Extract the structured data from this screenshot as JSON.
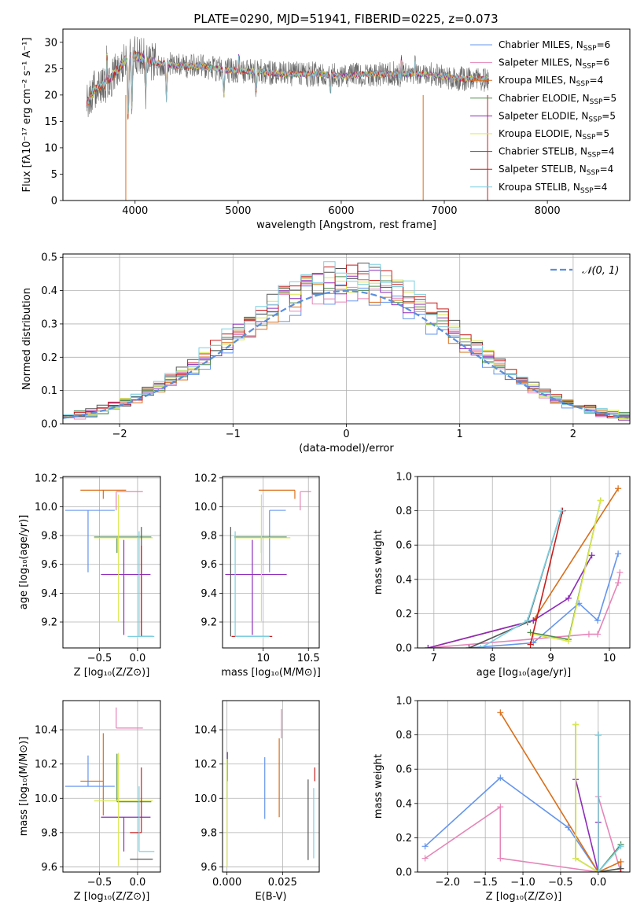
{
  "suptitle": "PLATE=0290, MJD=51941, FIBERID=0225, z=0.073",
  "colors": {
    "models": [
      "#6495ED",
      "#E585B8",
      "#D96F1A",
      "#4F8B4F",
      "#8E2BBA",
      "#D9E84A",
      "#555555",
      "#C81E1E",
      "#7CCFE0"
    ],
    "normal": "#5B8FDB"
  },
  "chart_data": [
    {
      "id": "spectrum",
      "type": "line",
      "xlabel": "wavelength [Angstrom, rest frame]",
      "ylabel": "Flux [fλ10⁻¹⁷ erg cm⁻² s⁻¹ A⁻¹]",
      "xlim": [
        3300,
        8800
      ],
      "ylim": [
        0,
        32.5
      ],
      "xticks": [
        4000,
        5000,
        6000,
        7000,
        8000
      ],
      "yticks": [
        0,
        5,
        10,
        15,
        20,
        25,
        30
      ],
      "grid": false,
      "legend": "upper right",
      "data_range": [
        3530,
        7430
      ],
      "continuum": {
        "x": [
          3530,
          3600,
          3700,
          3800,
          3900,
          4000,
          4100,
          4200,
          4300,
          4400,
          4600,
          4800,
          5000,
          5200,
          5400,
          5600,
          5800,
          6000,
          6200,
          6400,
          6600,
          6800,
          7000,
          7200,
          7430
        ],
        "y": [
          18,
          21,
          22,
          24,
          26.5,
          27.5,
          27,
          26,
          26,
          25.5,
          25.5,
          25,
          24.5,
          24.5,
          24,
          24,
          24,
          23.5,
          24,
          24,
          24,
          24,
          23.5,
          23,
          23
        ]
      },
      "features": {
        "absorption": [
          [
            3934,
            12
          ],
          [
            3969,
            10
          ],
          [
            4102,
            6
          ],
          [
            4305,
            7
          ],
          [
            4861,
            5
          ],
          [
            5175,
            4
          ],
          [
            5893,
            3
          ],
          [
            6563,
            3
          ]
        ],
        "emission": [
          [
            3727,
            5
          ],
          [
            5007,
            3
          ],
          [
            6563,
            5
          ],
          [
            6583,
            3
          ],
          [
            6716,
            2
          ]
        ]
      },
      "series": [
        {
          "name": "Chabrier MILES, N_SSP=6"
        },
        {
          "name": "Salpeter MILES, N_SSP=6"
        },
        {
          "name": "Kroupa MILES, N_SSP=4"
        },
        {
          "name": "Chabrier ELODIE, N_SSP=5"
        },
        {
          "name": "Salpeter ELODIE, N_SSP=5"
        },
        {
          "name": "Kroupa ELODIE, N_SSP=5"
        },
        {
          "name": "Chabrier STELIB, N_SSP=4"
        },
        {
          "name": "Salpeter STELIB, N_SSP=4"
        },
        {
          "name": "Kroupa STELIB, N_SSP=4"
        }
      ]
    },
    {
      "id": "residuals",
      "type": "line",
      "xlabel": "(data-model)/error",
      "ylabel": "Normed distribution",
      "xlim": [
        -2.5,
        2.5
      ],
      "ylim": [
        0,
        0.51
      ],
      "xticks": [
        -2,
        -1,
        0,
        1,
        2
      ],
      "yticks": [
        0.0,
        0.1,
        0.2,
        0.3,
        0.4,
        0.5
      ],
      "grid": true,
      "legend": "upper right",
      "normal_label": "𝒩(0, 1)",
      "bin_width": 0.1
    },
    {
      "id": "age_vs_Z",
      "type": "scatter",
      "xlabel": "Z [log₁₀(Z/Z⊙)]",
      "ylabel": "age  [log₁₀(age/yr)]",
      "xlim": [
        -0.98,
        0.3
      ],
      "ylim": [
        9.02,
        10.21
      ],
      "xticks": [
        -0.5,
        0.0
      ],
      "xticklabels": [
        "−0.5",
        "0.0"
      ],
      "yticks": [
        9.2,
        9.4,
        9.6,
        9.8,
        10.0,
        10.2
      ],
      "grid": true,
      "points": [
        {
          "x": -0.65,
          "xerr": [
            0.3,
            0.35
          ],
          "y": 9.975,
          "yerr": [
            0.43,
            0.0
          ]
        },
        {
          "x": -0.28,
          "xerr": [
            0.0,
            0.35
          ],
          "y": 10.105,
          "yerr": [
            0.13,
            0.0
          ]
        },
        {
          "x": -0.45,
          "xerr": [
            0.3,
            0.3
          ],
          "y": 10.115,
          "yerr": [
            0.06,
            0.0
          ]
        },
        {
          "x": -0.27,
          "xerr": [
            0.3,
            0.45
          ],
          "y": 9.79,
          "yerr": [
            0.11,
            0.0
          ]
        },
        {
          "x": -0.18,
          "xerr": [
            0.3,
            0.35
          ],
          "y": 9.53,
          "yerr": [
            0.42,
            0.24
          ]
        },
        {
          "x": -0.25,
          "xerr": [
            0.32,
            0.45
          ],
          "y": 9.785,
          "yerr": [
            0.58,
            0.3
          ]
        },
        {
          "x": 0.05,
          "xerr": [
            0.0,
            0.0
          ],
          "y": 9.1,
          "yerr": [
            0.0,
            0.76
          ]
        },
        {
          "x": 0.05,
          "xerr": [
            0.0,
            0.15
          ],
          "y": 9.1,
          "yerr": [
            0.0,
            0.63
          ]
        },
        {
          "x": 0.02,
          "xerr": [
            0.15,
            0.2
          ],
          "y": 9.1,
          "yerr": [
            0.0,
            0.73
          ]
        }
      ]
    },
    {
      "id": "age_vs_mass",
      "type": "scatter",
      "xlabel": "mass [log₁₀(M/M⊙)]",
      "ylabel": "",
      "xlim": [
        9.55,
        10.62
      ],
      "ylim": [
        9.02,
        10.21
      ],
      "xticks": [
        10.0,
        10.5
      ],
      "yticks": [
        9.2,
        9.4,
        9.6,
        9.8,
        10.0,
        10.2
      ],
      "grid": true,
      "points": [
        {
          "x": 10.07,
          "xerr": [
            0.0,
            0.18
          ],
          "y": 9.975,
          "yerr": [
            0.43,
            0.0
          ]
        },
        {
          "x": 10.41,
          "xerr": [
            0.0,
            0.12
          ],
          "y": 10.105,
          "yerr": [
            0.13,
            0.0
          ]
        },
        {
          "x": 10.35,
          "xerr": [
            0.4,
            0.0
          ],
          "y": 10.115,
          "yerr": [
            0.06,
            0.0
          ]
        },
        {
          "x": 9.98,
          "xerr": [
            0.3,
            0.28
          ],
          "y": 9.79,
          "yerr": [
            0.11,
            0.0
          ]
        },
        {
          "x": 9.88,
          "xerr": [
            0.3,
            0.38
          ],
          "y": 9.53,
          "yerr": [
            0.42,
            0.24
          ]
        },
        {
          "x": 9.98,
          "xerr": [
            0.3,
            0.32
          ],
          "y": 9.785,
          "yerr": [
            0.58,
            0.3
          ]
        },
        {
          "x": 9.64,
          "xerr": [
            0.0,
            0.0
          ],
          "y": 9.1,
          "yerr": [
            0.0,
            0.76
          ]
        },
        {
          "x": 9.8,
          "xerr": [
            0.15,
            0.3
          ],
          "y": 9.1,
          "yerr": [
            0.0,
            0.0
          ]
        },
        {
          "x": 9.69,
          "xerr": [
            0.0,
            0.38
          ],
          "y": 9.1,
          "yerr": [
            0.0,
            0.73
          ]
        }
      ]
    },
    {
      "id": "weight_vs_age",
      "type": "line",
      "xlabel": "age  [log₁₀(age/yr)]",
      "ylabel": "mass weight",
      "xlim": [
        6.72,
        10.35
      ],
      "ylim": [
        0,
        1.0
      ],
      "xticks": [
        7,
        8,
        9,
        10
      ],
      "yticks": [
        0.0,
        0.2,
        0.4,
        0.6,
        0.8,
        1.0
      ],
      "grid": true,
      "series": [
        {
          "x": [
            7.6,
            8.7,
            9.48,
            9.8,
            10.15
          ],
          "y": [
            0.0,
            0.03,
            0.26,
            0.16,
            0.55
          ]
        },
        {
          "x": [
            6.9,
            9.65,
            9.8,
            10.15,
            10.18
          ],
          "y": [
            0.0,
            0.08,
            0.08,
            0.38,
            0.44
          ]
        },
        {
          "x": [
            6.9,
            8.7,
            10.15
          ],
          "y": [
            0.0,
            0.16,
            0.93
          ]
        },
        {
          "x": [
            8.65,
            9.3,
            9.85
          ],
          "y": [
            0.09,
            0.05,
            0.86
          ]
        },
        {
          "x": [
            6.9,
            8.7,
            9.3,
            9.7
          ],
          "y": [
            0.0,
            0.16,
            0.29,
            0.54
          ]
        },
        {
          "x": [
            8.7,
            9.3,
            9.85
          ],
          "y": [
            0.08,
            0.04,
            0.86
          ]
        },
        {
          "x": [
            7.6,
            8.6,
            9.18
          ],
          "y": [
            0.0,
            0.15,
            0.8
          ]
        },
        {
          "x": [
            8.65,
            9.2
          ],
          "y": [
            0.02,
            0.8
          ]
        },
        {
          "x": [
            7.8,
            8.6,
            9.18
          ],
          "y": [
            0.0,
            0.16,
            0.8
          ]
        }
      ]
    },
    {
      "id": "mass_vs_Z",
      "type": "scatter",
      "xlabel": "Z [log₁₀(Z/Z⊙)]",
      "ylabel": "mass [log₁₀(M/M⊙)]",
      "xlim": [
        -0.98,
        0.3
      ],
      "ylim": [
        9.57,
        10.57
      ],
      "xticks": [
        -0.5,
        0.0
      ],
      "xticklabels": [
        "−0.5",
        "0.0"
      ],
      "yticks": [
        9.6,
        9.8,
        10.0,
        10.2,
        10.4
      ],
      "grid": true,
      "points": [
        {
          "x": -0.65,
          "xerr": [
            0.3,
            0.35
          ],
          "y": 10.07,
          "yerr": [
            0.0,
            0.18
          ]
        },
        {
          "x": -0.28,
          "xerr": [
            0.0,
            0.35
          ],
          "y": 10.41,
          "yerr": [
            0.0,
            0.12
          ]
        },
        {
          "x": -0.45,
          "xerr": [
            0.3,
            0.0
          ],
          "y": 10.1,
          "yerr": [
            0.2,
            0.28
          ]
        },
        {
          "x": -0.27,
          "xerr": [
            0.0,
            0.45
          ],
          "y": 9.98,
          "yerr": [
            0.0,
            0.28
          ]
        },
        {
          "x": -0.18,
          "xerr": [
            0.3,
            0.35
          ],
          "y": 9.89,
          "yerr": [
            0.2,
            0.0
          ]
        },
        {
          "x": -0.25,
          "xerr": [
            0.32,
            0.45
          ],
          "y": 9.985,
          "yerr": [
            0.38,
            0.28
          ]
        },
        {
          "x": 0.05,
          "xerr": [
            0.15,
            0.15
          ],
          "y": 9.645,
          "yerr": [
            0.0,
            0.0
          ]
        },
        {
          "x": 0.05,
          "xerr": [
            0.15,
            0.0
          ],
          "y": 9.8,
          "yerr": [
            0.0,
            0.38
          ]
        },
        {
          "x": 0.02,
          "xerr": [
            0.0,
            0.2
          ],
          "y": 9.69,
          "yerr": [
            0.0,
            0.38
          ]
        }
      ]
    },
    {
      "id": "mass_vs_EBV",
      "type": "scatter",
      "xlabel": "E(B-V)",
      "ylabel": "",
      "xlim": [
        -0.002,
        0.0415
      ],
      "ylim": [
        9.57,
        10.57
      ],
      "xticks": [
        0.0,
        0.025
      ],
      "xticklabels": [
        "0.000",
        "0.025"
      ],
      "yticks": [
        9.6,
        9.8,
        10.0,
        10.2,
        10.4
      ],
      "grid": true,
      "points": [
        {
          "x": 0.017,
          "y": 10.06,
          "yerr": [
            0.18,
            0.18
          ]
        },
        {
          "x": 0.0245,
          "y": 10.35,
          "yerr": [
            0.0,
            0.17
          ]
        },
        {
          "x": 0.0235,
          "y": 10.12,
          "yerr": [
            0.23,
            0.23
          ]
        },
        {
          "x": 0.0001,
          "y": 10.0,
          "yerr": [
            0.0,
            0.27
          ]
        },
        {
          "x": 0.0002,
          "y": 10.1,
          "yerr": [
            0.0,
            0.17
          ]
        },
        {
          "x": 0.0001,
          "y": 9.93,
          "yerr": [
            0.33,
            0.3
          ]
        },
        {
          "x": 0.0365,
          "y": 9.875,
          "yerr": [
            0.235,
            0.235
          ]
        },
        {
          "x": 0.0395,
          "y": 10.1,
          "yerr": [
            0.0,
            0.08
          ]
        },
        {
          "x": 0.039,
          "y": 9.88,
          "yerr": [
            0.23,
            0.18
          ]
        }
      ]
    },
    {
      "id": "weight_vs_Z",
      "type": "line",
      "xlabel": "Z [log₁₀(Z/Z⊙)]",
      "ylabel": "mass weight",
      "xlim": [
        -2.4,
        0.42
      ],
      "ylim": [
        0,
        1.0
      ],
      "xticks": [
        -2.0,
        -1.5,
        -1.0,
        -0.5,
        0.0
      ],
      "xticklabels": [
        "−2.0",
        "−1.5",
        "−1.0",
        "−0.5",
        "0.0"
      ],
      "yticks": [
        0.0,
        0.2,
        0.4,
        0.6,
        0.8,
        1.0
      ],
      "grid": true,
      "series": [
        {
          "x": [
            -2.3,
            -1.3,
            -0.4,
            0.0,
            0.3
          ],
          "y": [
            0.15,
            0.55,
            0.26,
            0.0,
            0.16
          ]
        },
        {
          "x": [
            -2.3,
            -1.3,
            -1.3,
            0.0,
            0.0,
            0.3
          ],
          "y": [
            0.08,
            0.38,
            0.08,
            0.0,
            0.44,
            0.0
          ]
        },
        {
          "x": [
            -1.3,
            0.0,
            0.3,
            0.3
          ],
          "y": [
            0.93,
            0.0,
            0.06,
            0.02
          ]
        },
        {
          "x": [
            -0.3,
            -0.3,
            0.0,
            0.3
          ],
          "y": [
            0.86,
            0.08,
            0.0,
            0.16
          ]
        },
        {
          "x": [
            -0.3,
            0.0,
            0.0
          ],
          "y": [
            0.54,
            0.0,
            0.29
          ]
        },
        {
          "x": [
            -0.3,
            -0.3,
            0.0,
            0.3
          ],
          "y": [
            0.86,
            0.08,
            0.0,
            0.02
          ]
        },
        {
          "x": [
            0.0,
            0.0,
            0.3
          ],
          "y": [
            0.8,
            0.0,
            0.02
          ]
        },
        {
          "x": [
            0.0,
            0.0,
            0.3
          ],
          "y": [
            0.8,
            0.0,
            0.0
          ]
        },
        {
          "x": [
            0.0,
            0.0,
            0.3
          ],
          "y": [
            0.8,
            0.0,
            0.15
          ]
        }
      ]
    }
  ]
}
